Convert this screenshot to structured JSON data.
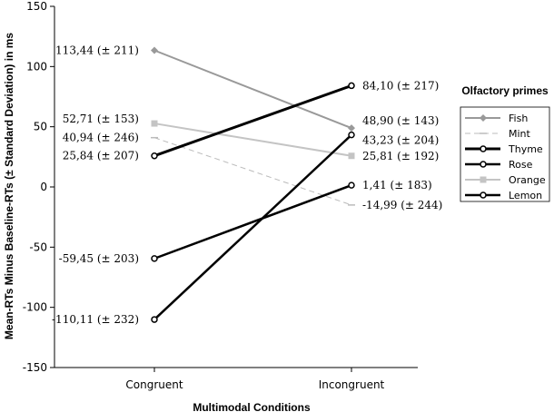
{
  "chart_data": {
    "type": "line",
    "xlabel": "Multimodal Conditions",
    "ylabel": "Mean-RTs Minus Baseline-RTs (± Standard Deviation) in ms",
    "categories": [
      "Congruent",
      "Incongruent"
    ],
    "ylim": [
      -150,
      150
    ],
    "yticks": [
      150,
      100,
      50,
      0,
      -50,
      -100,
      -150
    ],
    "ytick_labels": [
      "150",
      "100",
      "50",
      "0",
      "-50",
      "-100",
      "-150"
    ],
    "grid": false,
    "legend": {
      "title": "Olfactory primes",
      "position": "right"
    },
    "series": [
      {
        "name": "Fish",
        "values": [
          113.44,
          48.9
        ],
        "labels": [
          "113,44 (± 211)",
          "48,90 (± 143)"
        ],
        "color": "#999999",
        "marker": "diamond",
        "dash": false,
        "width": 2
      },
      {
        "name": "Mint",
        "values": [
          40.94,
          -14.99
        ],
        "labels": [
          "40,94 (± 246)",
          "-14,99 (± 244)"
        ],
        "color": "#bbbbbb",
        "marker": "dash",
        "dash": true,
        "width": 1
      },
      {
        "name": "Thyme",
        "values": [
          25.84,
          84.1
        ],
        "labels": [
          "25,84 (± 207)",
          "84,10 (± 217)"
        ],
        "color": "#000000",
        "marker": "circle",
        "dash": false,
        "width": 3
      },
      {
        "name": "Rose",
        "values": [
          -59.45,
          1.41
        ],
        "labels": [
          "-59,45 (± 203)",
          "1,41 (± 183)"
        ],
        "color": "#000000",
        "marker": "circle",
        "dash": false,
        "width": 2.5
      },
      {
        "name": "Orange",
        "values": [
          52.71,
          25.81
        ],
        "labels": [
          "52,71 (± 153)",
          "25,81 (± 192)"
        ],
        "color": "#c4c4c4",
        "marker": "square",
        "dash": false,
        "width": 2
      },
      {
        "name": "Lemon",
        "values": [
          -110.11,
          43.23
        ],
        "labels": [
          "-110,11 (± 232)",
          "43,23 (± 204)"
        ],
        "color": "#000000",
        "marker": "circle",
        "dash": false,
        "width": 2.5
      }
    ]
  }
}
